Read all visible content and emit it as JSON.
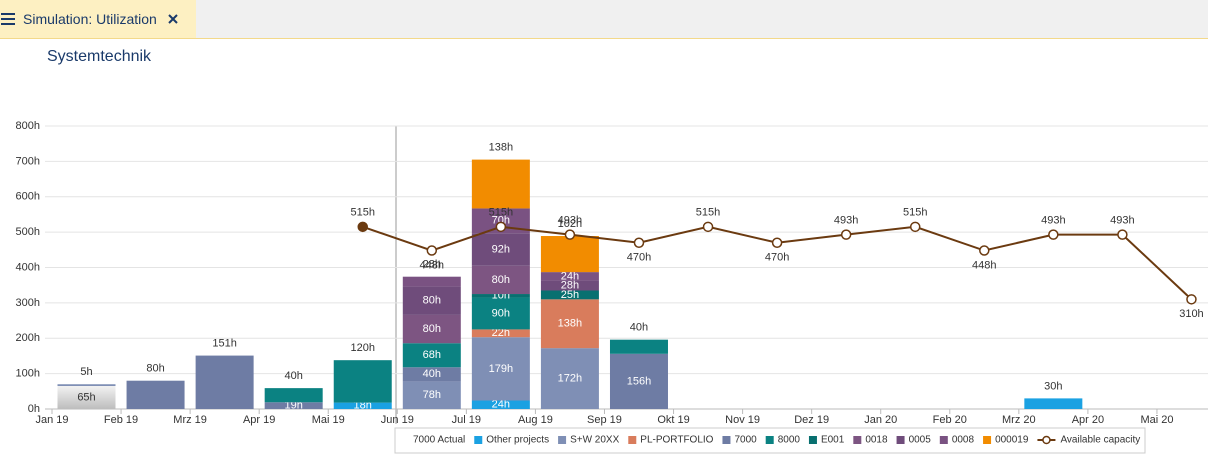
{
  "tab": {
    "title": "Simulation: Utilization"
  },
  "chart_data": {
    "type": "bar",
    "stacked": true,
    "title": "Systemtechnik",
    "categories": [
      "Jan 19",
      "Feb 19",
      "Mrz 19",
      "Apr 19",
      "Mai 19",
      "Jun 19",
      "Jul 19",
      "Aug 19",
      "Sep 19",
      "Okt 19",
      "Nov 19",
      "Dez 19",
      "Jan 20",
      "Feb 20",
      "Mrz 20",
      "Apr 20",
      "Mai 20"
    ],
    "ylim": [
      0,
      800
    ],
    "yticks": [
      {
        "value": 0,
        "label": "0h"
      },
      {
        "value": 100,
        "label": "100h"
      },
      {
        "value": 200,
        "label": "200h"
      },
      {
        "value": 300,
        "label": "300h"
      },
      {
        "value": 400,
        "label": "400h"
      },
      {
        "value": 500,
        "label": "500h"
      },
      {
        "value": 600,
        "label": "600h"
      },
      {
        "value": 700,
        "label": "700h"
      },
      {
        "value": 800,
        "label": "800h"
      }
    ],
    "grid": true,
    "legend": "bottom",
    "series": [
      {
        "name": "7000 Actual",
        "color": "#c8c8c8",
        "values": [
          65,
          null,
          null,
          null,
          null,
          null,
          null,
          null,
          null,
          null,
          null,
          null,
          null,
          null,
          null,
          null,
          null
        ],
        "value_labels": [
          "65h",
          null,
          null,
          null,
          null,
          null,
          null,
          null,
          null,
          null,
          null,
          null,
          null,
          null,
          null,
          null,
          null
        ]
      },
      {
        "name": "Other projects",
        "color": "#1ba1e2",
        "values": [
          null,
          null,
          null,
          null,
          18,
          null,
          24,
          null,
          null,
          null,
          null,
          null,
          null,
          null,
          30,
          null,
          null
        ],
        "value_labels": [
          null,
          null,
          null,
          null,
          "18h",
          null,
          "24h",
          null,
          null,
          null,
          null,
          null,
          null,
          null,
          "30h",
          null,
          null
        ]
      },
      {
        "name": "S+W 20XX",
        "color": "#7f8fb5",
        "values": [
          5,
          null,
          null,
          null,
          null,
          78,
          179,
          172,
          null,
          null,
          null,
          null,
          null,
          null,
          null,
          null,
          null
        ],
        "value_labels": [
          "5h",
          null,
          null,
          null,
          null,
          "78h",
          "179h",
          "172h",
          null,
          null,
          null,
          null,
          null,
          null,
          null,
          null,
          null
        ]
      },
      {
        "name": "PL-PORTFOLIO",
        "color": "#d97c5c",
        "values": [
          null,
          null,
          null,
          null,
          null,
          null,
          22,
          138,
          null,
          null,
          null,
          null,
          null,
          null,
          null,
          null,
          null
        ],
        "value_labels": [
          null,
          null,
          null,
          null,
          null,
          null,
          "22h",
          "138h",
          null,
          null,
          null,
          null,
          null,
          null,
          null,
          null,
          null
        ]
      },
      {
        "name": "7000",
        "color": "#6e7ca4",
        "values": [
          null,
          80,
          151,
          19,
          null,
          40,
          null,
          null,
          156,
          null,
          null,
          null,
          null,
          null,
          null,
          null,
          null
        ],
        "value_labels": [
          null,
          "80h",
          "151h",
          "19h",
          null,
          "40h",
          null,
          null,
          "156h",
          null,
          null,
          null,
          null,
          null,
          null,
          null,
          null
        ]
      },
      {
        "name": "8000",
        "color": "#0b8282",
        "values": [
          null,
          null,
          null,
          40,
          120,
          68,
          90,
          null,
          40,
          null,
          null,
          null,
          null,
          null,
          null,
          null,
          null
        ],
        "value_labels": [
          null,
          null,
          null,
          "40h",
          "120h",
          "68h",
          "90h",
          null,
          "40h",
          null,
          null,
          null,
          null,
          null,
          null,
          null,
          null
        ]
      },
      {
        "name": "E001",
        "color": "#087070",
        "values": [
          null,
          null,
          null,
          null,
          null,
          null,
          10,
          25,
          null,
          null,
          null,
          null,
          null,
          null,
          null,
          null,
          null
        ],
        "value_labels": [
          null,
          null,
          null,
          null,
          null,
          null,
          "10h",
          "25h",
          null,
          null,
          null,
          null,
          null,
          null,
          null,
          null,
          null
        ]
      },
      {
        "name": "0018",
        "color": "#7d5582",
        "values": [
          null,
          null,
          null,
          null,
          null,
          80,
          80,
          null,
          null,
          null,
          null,
          null,
          null,
          null,
          null,
          null,
          null
        ],
        "value_labels": [
          null,
          null,
          null,
          null,
          null,
          "80h",
          "80h",
          null,
          null,
          null,
          null,
          null,
          null,
          null,
          null,
          null,
          null
        ]
      },
      {
        "name": "0005",
        "color": "#6f4c7b",
        "values": [
          null,
          null,
          null,
          null,
          null,
          80,
          92,
          28,
          null,
          null,
          null,
          null,
          null,
          null,
          null,
          null,
          null
        ],
        "value_labels": [
          null,
          null,
          null,
          null,
          null,
          "80h",
          "92h",
          "28h",
          null,
          null,
          null,
          null,
          null,
          null,
          null,
          null,
          null
        ]
      },
      {
        "name": "0008",
        "color": "#7a5282",
        "values": [
          null,
          null,
          null,
          null,
          null,
          28,
          70,
          24,
          null,
          null,
          null,
          null,
          null,
          null,
          null,
          null,
          null
        ],
        "value_labels": [
          null,
          null,
          null,
          null,
          null,
          "28h",
          "70h",
          "24h",
          null,
          null,
          null,
          null,
          null,
          null,
          null,
          null,
          null
        ]
      },
      {
        "name": "000019",
        "color": "#f28c00",
        "values": [
          null,
          null,
          null,
          null,
          null,
          null,
          138,
          102,
          null,
          null,
          null,
          null,
          null,
          null,
          null,
          null,
          null
        ],
        "value_labels": [
          null,
          null,
          null,
          null,
          null,
          null,
          "138h",
          "102h",
          null,
          null,
          null,
          null,
          null,
          null,
          null,
          null,
          null
        ]
      },
      {
        "name": "Available capacity",
        "type": "line",
        "color": "#6b3a10",
        "values": [
          null,
          null,
          null,
          null,
          515,
          448,
          515,
          493,
          470,
          515,
          470,
          493,
          515,
          448,
          493,
          493,
          310
        ],
        "value_labels": [
          null,
          null,
          null,
          null,
          "515h",
          "448h",
          "515h",
          "493h",
          "470h",
          "515h",
          "470h",
          "493h",
          "515h",
          "448h",
          "493h",
          "493h",
          "310h"
        ]
      }
    ]
  }
}
